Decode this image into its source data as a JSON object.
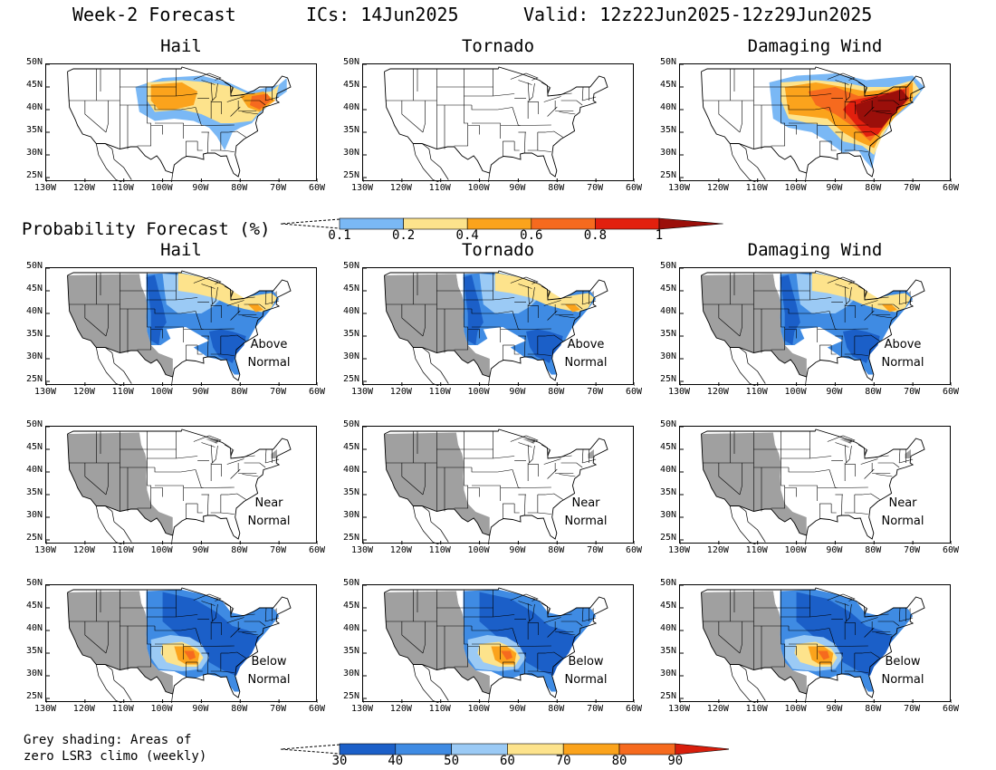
{
  "header": {
    "title": "Week-2 Forecast",
    "ics": "ICs: 14Jun2025",
    "valid": "Valid: 12z22Jun2025-12z29Jun2025"
  },
  "columns": [
    "Hail",
    "Tornado",
    "Damaging Wind"
  ],
  "axes": {
    "y_ticks": [
      "50N",
      "45N",
      "40N",
      "35N",
      "30N",
      "25N"
    ],
    "x_ticks": [
      "130W",
      "120W",
      "110W",
      "100W",
      "90W",
      "80W",
      "70W",
      "60W"
    ]
  },
  "prob_section": {
    "title": "Probability Forecast (%)",
    "colorbar": {
      "colors": [
        "#7ab8f5",
        "#fde38c",
        "#fba31c",
        "#f66a1e",
        "#e2200e",
        "#9b0f0a"
      ],
      "labels": [
        "0.1",
        "0.2",
        "0.4",
        "0.6",
        "0.8",
        "1"
      ]
    }
  },
  "anomaly_rows": [
    {
      "label_line1": "Above",
      "label_line2": "Normal"
    },
    {
      "label_line1": "Near",
      "label_line2": "Normal"
    },
    {
      "label_line1": "Below",
      "label_line2": "Normal"
    }
  ],
  "anomaly_colorbar": {
    "colors": [
      "#1b5fc8",
      "#3f8be3",
      "#9bcaf5",
      "#fde38c",
      "#fba31c",
      "#f66a1e",
      "#d81e0c"
    ],
    "labels": [
      "30",
      "40",
      "50",
      "60",
      "70",
      "80",
      "90"
    ]
  },
  "footnote": {
    "line1": "Grey shading: Areas of",
    "line2": "zero LSR3 climo (weekly)"
  }
}
